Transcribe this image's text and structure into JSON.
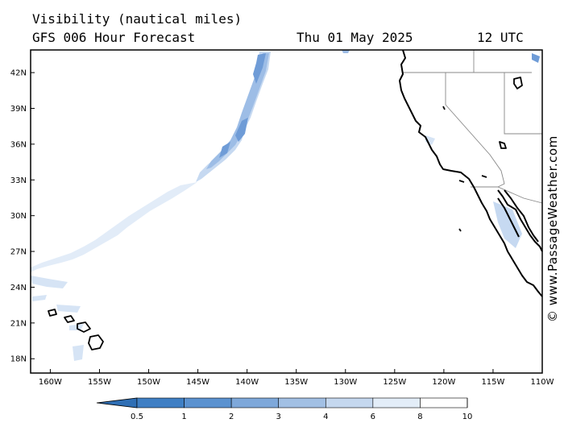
{
  "header": {
    "title": "Visibility (nautical miles)",
    "model": "GFS 006 Hour Forecast",
    "date": "Thu 01 May 2025",
    "utc": "12 UTC"
  },
  "copyright": "© www.PassageWeather.com",
  "map": {
    "lat_labels": [
      "42N",
      "39N",
      "36N",
      "33N",
      "30N",
      "27N",
      "24N",
      "21N",
      "18N"
    ],
    "lon_labels": [
      "160W",
      "155W",
      "150W",
      "145W",
      "140W",
      "135W",
      "130W",
      "125W",
      "120W",
      "115W",
      "110W"
    ],
    "lon_range": [
      -162,
      -110
    ],
    "lat_range": [
      16.8,
      43.9
    ]
  },
  "colorbar": {
    "labels": [
      "0.5",
      "1",
      "2",
      "3",
      "4",
      "6",
      "8",
      "10"
    ],
    "colors": [
      "#2f6fb5",
      "#3f7fc4",
      "#5b92d0",
      "#7ea8da",
      "#a2c0e4",
      "#c5d8ef",
      "#e3edf8",
      "#ffffff"
    ]
  },
  "colors": {
    "fog_light": "#d6e4f5",
    "fog_mid": "#a9c4e8",
    "fog_dark": "#6f9cd7",
    "coast": "#000000",
    "state_border": "#888888"
  }
}
